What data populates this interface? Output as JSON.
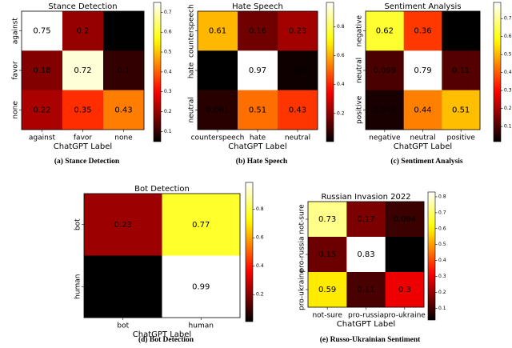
{
  "chart_data": [
    {
      "type": "heatmap",
      "title": "Stance Detection",
      "x_label": "ChatGPT Label",
      "caption": "(a) Stance Detection",
      "x_categories": [
        "against",
        "favor",
        "none"
      ],
      "y_categories": [
        "against",
        "favor",
        "none"
      ],
      "values": [
        [
          0.75,
          0.2,
          0.049
        ],
        [
          0.18,
          0.72,
          0.1
        ],
        [
          0.22,
          0.35,
          0.43
        ]
      ],
      "colormap": "hot",
      "zlim": [
        0.049,
        0.75
      ],
      "zticks": [
        0.1,
        0.2,
        0.3,
        0.4,
        0.5,
        0.6,
        0.7
      ]
    },
    {
      "type": "heatmap",
      "title": "Hate Speech",
      "x_label": "ChatGPT Label",
      "caption": "(b) Hate Speech",
      "x_categories": [
        "counterspeech",
        "hate",
        "neutral"
      ],
      "y_categories": [
        "counterspeech",
        "hate",
        "neutral"
      ],
      "values": [
        [
          0.61,
          0.16,
          0.23
        ],
        [
          0.0047,
          0.97,
          0.026
        ],
        [
          0.061,
          0.51,
          0.43
        ]
      ],
      "colormap": "hot",
      "zlim": [
        0.0047,
        0.97
      ],
      "zticks": [
        0.2,
        0.4,
        0.6,
        0.8
      ]
    },
    {
      "type": "heatmap",
      "title": "Sentiment Analysis",
      "x_label": "ChatGPT Label",
      "caption": "(c) Sentiment Analysis",
      "x_categories": [
        "negative",
        "neutral",
        "positive"
      ],
      "y_categories": [
        "negative",
        "neutral",
        "positive"
      ],
      "values": [
        [
          0.62,
          0.36,
          0.016
        ],
        [
          0.099,
          0.79,
          0.11
        ],
        [
          0.043,
          0.44,
          0.51
        ]
      ],
      "colormap": "hot",
      "zlim": [
        0.016,
        0.79
      ],
      "zticks": [
        0.1,
        0.2,
        0.3,
        0.4,
        0.5,
        0.6,
        0.7
      ]
    },
    {
      "type": "heatmap",
      "title": "Bot Detection",
      "x_label": "ChatGPT Label",
      "caption": "(d) Bot Detection",
      "x_categories": [
        "bot",
        "human"
      ],
      "y_categories": [
        "bot",
        "human"
      ],
      "values": [
        [
          0.23,
          0.77
        ],
        [
          0.0098,
          0.99
        ]
      ],
      "colormap": "hot",
      "zlim": [
        0.0098,
        0.99
      ],
      "zticks": [
        0.2,
        0.4,
        0.6,
        0.8
      ]
    },
    {
      "type": "heatmap",
      "title": "Russian Invasion 2022",
      "x_label": "ChatGPT Label",
      "caption": "(e) Russo-Ukrainian Sentiment",
      "x_categories": [
        "not-sure",
        "pro-russia",
        "pro-ukraine"
      ],
      "y_categories": [
        "not-sure",
        "pro-russia",
        "pro-ukraine"
      ],
      "values": [
        [
          0.73,
          0.17,
          0.094
        ],
        [
          0.15,
          0.83,
          0.026
        ],
        [
          0.59,
          0.11,
          0.3
        ]
      ],
      "colormap": "hot",
      "zlim": [
        0.026,
        0.83
      ],
      "zticks": [
        0.1,
        0.2,
        0.3,
        0.4,
        0.5,
        0.6,
        0.7,
        0.8
      ]
    }
  ]
}
